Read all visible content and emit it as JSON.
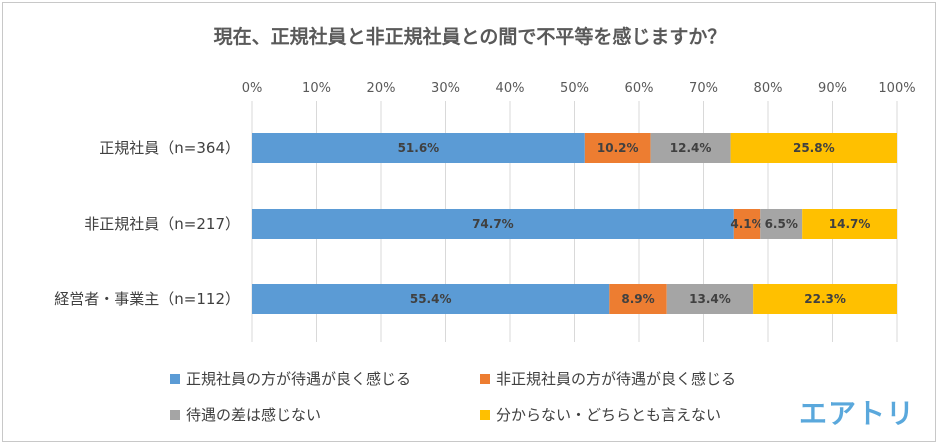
{
  "chart_data": {
    "type": "bar",
    "orientation": "horizontal",
    "stacked": true,
    "percent_scale": true,
    "title": "現在、正規社員と非正規社員との間で不平等を感じますか？",
    "categories": [
      "正規社員（n=364）",
      "非正規社員（n=217）",
      "経営者・事業主（n=112）"
    ],
    "xlim": [
      0,
      100
    ],
    "x_ticks": [
      "0%",
      "10%",
      "20%",
      "30%",
      "40%",
      "50%",
      "60%",
      "70%",
      "80%",
      "90%",
      "100%"
    ],
    "grid": true,
    "legend_position": "bottom",
    "series": [
      {
        "name": "正規社員の方が待遇が良く感じる",
        "color": "#5b9bd5",
        "values": [
          51.6,
          74.7,
          55.4
        ],
        "labels": [
          "51.6%",
          "74.7%",
          "55.4%"
        ]
      },
      {
        "name": "非正規社員の方が待遇が良く感じる",
        "color": "#ed7d31",
        "values": [
          10.2,
          4.1,
          8.9
        ],
        "labels": [
          "10.2%",
          "4.1%",
          "8.9%"
        ]
      },
      {
        "name": "待遇の差は感じない",
        "color": "#a5a5a5",
        "values": [
          12.4,
          6.5,
          13.4
        ],
        "labels": [
          "12.4%",
          "6.5%",
          "13.4%"
        ]
      },
      {
        "name": "分からない・どちらとも言えない",
        "color": "#ffc000",
        "values": [
          25.8,
          14.7,
          22.3
        ],
        "labels": [
          "25.8%",
          "14.7%",
          "22.3%"
        ]
      }
    ]
  },
  "logo_text": "エアトリ"
}
